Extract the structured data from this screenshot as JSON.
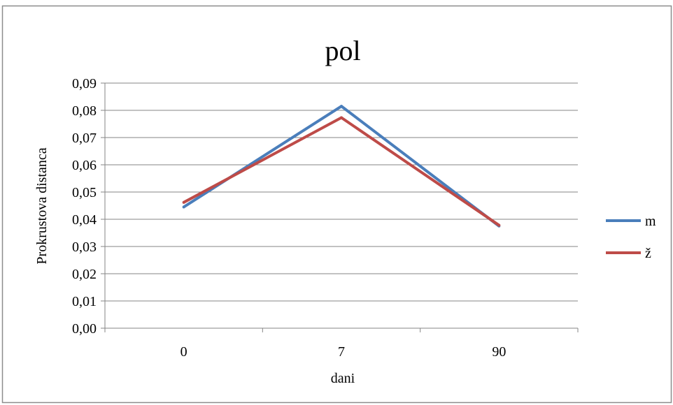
{
  "chart_data": {
    "type": "line",
    "title": "pol",
    "xlabel": "dani",
    "ylabel": "Prokrustova distanca",
    "categories": [
      "0",
      "7",
      "90"
    ],
    "ylim": [
      0,
      0.09
    ],
    "yticks": [
      "0,00",
      "0,01",
      "0,02",
      "0,03",
      "0,04",
      "0,05",
      "0,06",
      "0,07",
      "0,08",
      "0,09"
    ],
    "grid": true,
    "legend": "right",
    "series": [
      {
        "name": "m",
        "color": "#4a7ebb",
        "values": [
          0.0445,
          0.0815,
          0.0375
        ]
      },
      {
        "name": "ž",
        "color": "#be4b48",
        "values": [
          0.0462,
          0.0773,
          0.0378
        ]
      }
    ]
  }
}
